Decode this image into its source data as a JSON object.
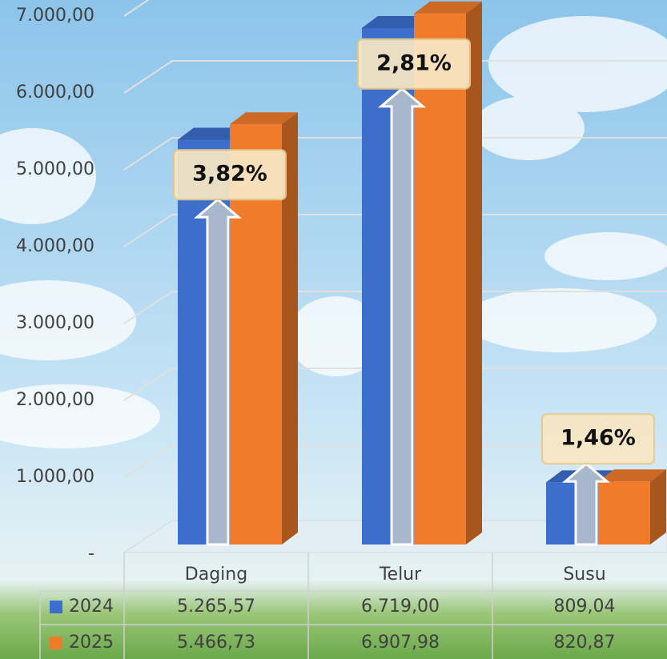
{
  "chart_data": {
    "type": "bar3d",
    "categories": [
      "Daging",
      "Telur",
      "Susu"
    ],
    "series": [
      {
        "name": "2024",
        "color": "#3b6fcb",
        "values": [
          5265.57,
          6719.0,
          809.04
        ],
        "value_labels": [
          "5.265,57",
          "6.719,00",
          "809,04"
        ]
      },
      {
        "name": "2025",
        "color": "#ef7b2b",
        "values": [
          5466.73,
          6907.98,
          820.87
        ],
        "value_labels": [
          "5.466,73",
          "6.907,98",
          "820,87"
        ]
      }
    ],
    "annotations": [
      "3,82%",
      "2,81%",
      "1,46%"
    ],
    "ylim": [
      0,
      7000
    ],
    "yticks": [
      {
        "value": 0,
        "label": "-"
      },
      {
        "value": 1000,
        "label": "1.000,00"
      },
      {
        "value": 2000,
        "label": "2.000,00"
      },
      {
        "value": 3000,
        "label": "3.000,00"
      },
      {
        "value": 4000,
        "label": "4.000,00"
      },
      {
        "value": 5000,
        "label": "5.000,00"
      },
      {
        "value": 6000,
        "label": "6.000,00"
      },
      {
        "value": 7000,
        "label": "7.000,00"
      }
    ],
    "grid": true
  }
}
